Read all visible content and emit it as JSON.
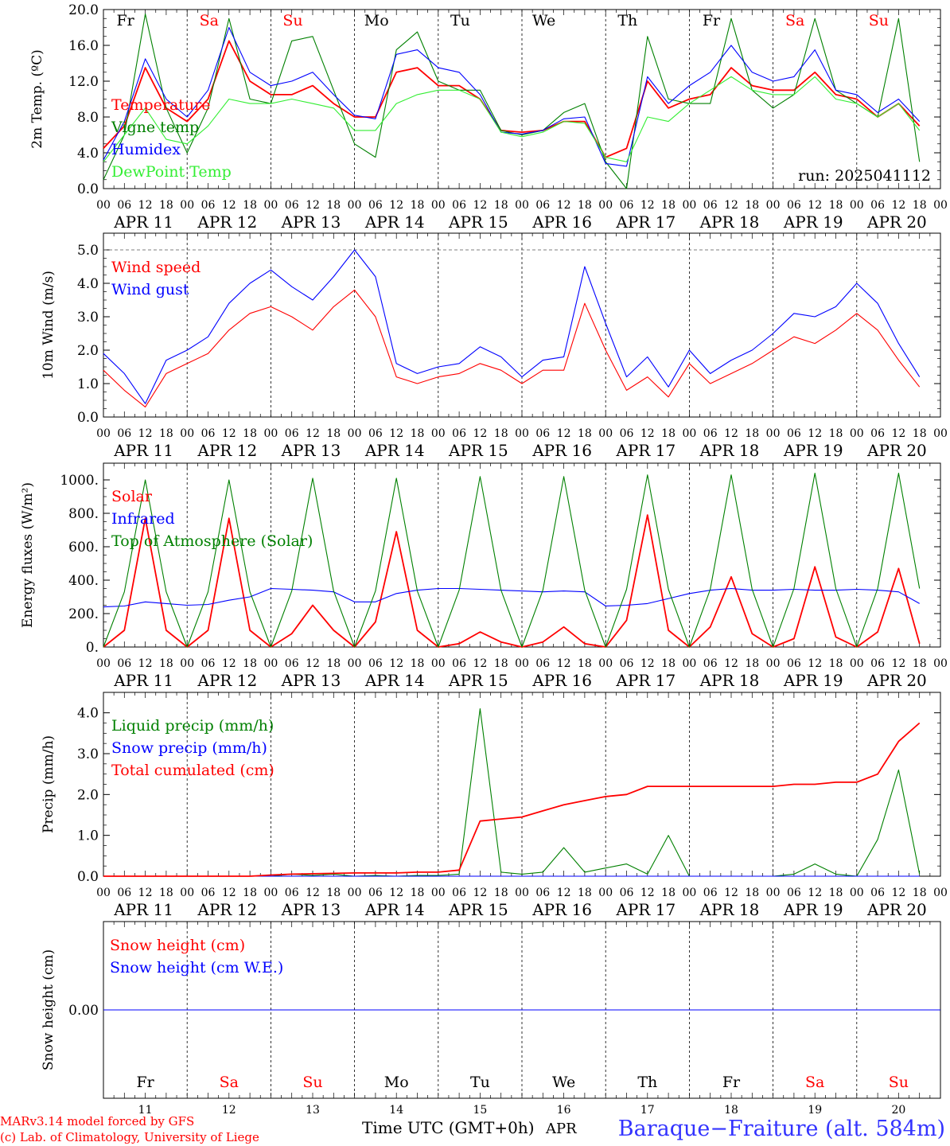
{
  "meta": {
    "run_label": "run: 2025041112",
    "model_line": "MARv3.14 model forced by GFS",
    "lab_line": "(c) Lab. of Climatology, University of Liege",
    "axis_caption": "Time UTC (GMT+0h)",
    "month": "APR",
    "station": "Baraque−Fraiture (alt. 584m)"
  },
  "colors": {
    "red": "#ff0000",
    "green": "#008000",
    "blue": "#0000ff",
    "lightgreen": "#33ee33",
    "black": "#000000"
  },
  "days": {
    "dates": [
      "APR 11",
      "APR 12",
      "APR 13",
      "APR 14",
      "APR 15",
      "APR 16",
      "APR 17",
      "APR 18",
      "APR 19",
      "APR 20"
    ],
    "day_numbers": [
      "11",
      "12",
      "13",
      "14",
      "15",
      "16",
      "17",
      "18",
      "19",
      "20"
    ],
    "weekdays": [
      "Fr",
      "Sa",
      "Su",
      "Mo",
      "Tu",
      "We",
      "Th",
      "Fr",
      "Sa",
      "Su"
    ],
    "weekend_flags": [
      false,
      true,
      true,
      false,
      false,
      false,
      false,
      false,
      true,
      true
    ],
    "hour_labels": [
      "00",
      "06",
      "12",
      "18"
    ],
    "end_label": "00"
  },
  "chart_data": [
    {
      "type": "line",
      "ylabel": "2m Temp. (ºC)",
      "ylim": [
        0,
        20
      ],
      "yticks": [
        "0.0",
        "4.0",
        "8.0",
        "12.0",
        "16.0",
        "20.0"
      ],
      "x_unit": "hours since APR 11 00 UTC",
      "x": [
        0,
        6,
        12,
        18,
        24,
        30,
        36,
        42,
        48,
        54,
        60,
        66,
        72,
        78,
        84,
        90,
        96,
        102,
        108,
        114,
        120,
        126,
        132,
        138,
        144,
        150,
        156,
        162,
        168,
        174,
        180,
        186,
        192,
        198,
        204,
        210,
        216,
        222,
        228,
        234
      ],
      "series": [
        {
          "name": "Temperature",
          "color": "red",
          "values": [
            4.5,
            7,
            13.5,
            9,
            7.5,
            10,
            16.5,
            12,
            10.5,
            10.5,
            11.5,
            9.5,
            8,
            8,
            13,
            13.5,
            11.5,
            11.5,
            10,
            6.5,
            6.3,
            6.5,
            7.5,
            7.5,
            3.5,
            4.5,
            12,
            9,
            10,
            10.5,
            13.5,
            11.5,
            11,
            11,
            13,
            10.5,
            10,
            8,
            9.5,
            7
          ]
        },
        {
          "name": "Vigne temp",
          "color": "green",
          "values": [
            1,
            6,
            19.5,
            9,
            4,
            9,
            19,
            10,
            9.5,
            16.5,
            17,
            11,
            5,
            3.5,
            15.5,
            17.5,
            12,
            11,
            11,
            6.5,
            6,
            6.5,
            8.5,
            9.5,
            3,
            0,
            17,
            10,
            9.5,
            9.5,
            19,
            11,
            9,
            10.5,
            19,
            11,
            9.5,
            8,
            19,
            3
          ]
        },
        {
          "name": "Humidex",
          "color": "blue",
          "values": [
            3.2,
            7.5,
            14.5,
            10,
            8,
            11,
            18,
            13,
            11.5,
            12,
            13,
            10.5,
            8.2,
            7.8,
            15,
            15.5,
            13.5,
            13,
            10.5,
            6.3,
            6.1,
            6.5,
            7.8,
            8,
            2.8,
            2.5,
            12.5,
            9.5,
            11.5,
            13,
            16,
            13,
            12,
            12.5,
            15.5,
            11,
            10.5,
            8.5,
            10,
            7.5
          ]
        },
        {
          "name": "DewPoint Temp",
          "color": "lightgreen",
          "values": [
            3,
            6,
            9,
            5.5,
            5,
            7,
            10,
            9.5,
            9.5,
            10,
            9.5,
            9,
            6.5,
            6.5,
            9.5,
            10.5,
            11,
            11,
            10,
            6.3,
            5.8,
            6.3,
            7.5,
            7.3,
            3.5,
            3,
            8,
            7.5,
            9.5,
            11,
            12.5,
            11,
            10.5,
            10.5,
            12.5,
            10,
            9.5,
            8,
            9.5,
            6.5
          ]
        }
      ]
    },
    {
      "type": "line",
      "ylabel": "10m Wind (m/s)",
      "ylim": [
        0,
        5.5
      ],
      "yticks": [
        "0.0",
        "1.0",
        "2.0",
        "3.0",
        "4.0",
        "5.0"
      ],
      "dashed_ref": 5.0,
      "x_unit": "hours since APR 11 00 UTC",
      "x": [
        0,
        6,
        12,
        18,
        24,
        30,
        36,
        42,
        48,
        54,
        60,
        66,
        72,
        78,
        84,
        90,
        96,
        102,
        108,
        114,
        120,
        126,
        132,
        138,
        144,
        150,
        156,
        162,
        168,
        174,
        180,
        186,
        192,
        198,
        204,
        210,
        216,
        222,
        228,
        234
      ],
      "series": [
        {
          "name": "Wind speed",
          "color": "red",
          "values": [
            1.4,
            0.8,
            0.3,
            1.3,
            1.6,
            1.9,
            2.6,
            3.1,
            3.3,
            3.0,
            2.6,
            3.3,
            3.8,
            3.0,
            1.2,
            1.0,
            1.2,
            1.3,
            1.6,
            1.4,
            1.0,
            1.4,
            1.4,
            3.4,
            2.0,
            0.8,
            1.2,
            0.6,
            1.6,
            1.0,
            1.3,
            1.6,
            2.0,
            2.4,
            2.2,
            2.6,
            3.1,
            2.6,
            1.7,
            0.9
          ]
        },
        {
          "name": "Wind gust",
          "color": "blue",
          "values": [
            1.9,
            1.3,
            0.4,
            1.7,
            2.0,
            2.4,
            3.4,
            4.0,
            4.4,
            3.9,
            3.5,
            4.2,
            5.0,
            4.2,
            1.6,
            1.3,
            1.5,
            1.6,
            2.1,
            1.8,
            1.2,
            1.7,
            1.8,
            4.5,
            2.8,
            1.2,
            1.8,
            0.9,
            2.0,
            1.3,
            1.7,
            2.0,
            2.5,
            3.1,
            3.0,
            3.3,
            4.0,
            3.4,
            2.2,
            1.2
          ]
        }
      ]
    },
    {
      "type": "line",
      "ylabel": "Energy fluxes (W/m²)",
      "ylim": [
        0,
        1100
      ],
      "yticks": [
        "0.",
        "200.",
        "400.",
        "600.",
        "800.",
        "1000."
      ],
      "x_unit": "hours since APR 11 00 UTC",
      "x": [
        0,
        6,
        12,
        18,
        24,
        30,
        36,
        42,
        48,
        54,
        60,
        66,
        72,
        78,
        84,
        90,
        96,
        102,
        108,
        114,
        120,
        126,
        132,
        138,
        144,
        150,
        156,
        162,
        168,
        174,
        180,
        186,
        192,
        198,
        204,
        210,
        216,
        222,
        228,
        234
      ],
      "series": [
        {
          "name": "Solar",
          "color": "red",
          "values": [
            0,
            100,
            770,
            100,
            0,
            100,
            770,
            100,
            0,
            80,
            250,
            100,
            0,
            150,
            690,
            100,
            0,
            20,
            90,
            30,
            0,
            30,
            120,
            20,
            0,
            160,
            790,
            100,
            0,
            120,
            420,
            80,
            0,
            50,
            480,
            60,
            0,
            90,
            470,
            20
          ]
        },
        {
          "name": "Infrared",
          "color": "blue",
          "values": [
            240,
            245,
            270,
            260,
            250,
            255,
            280,
            300,
            350,
            345,
            340,
            330,
            270,
            270,
            320,
            340,
            350,
            350,
            345,
            340,
            335,
            330,
            335,
            330,
            245,
            250,
            260,
            290,
            320,
            340,
            350,
            340,
            340,
            345,
            340,
            340,
            345,
            340,
            330,
            260
          ]
        },
        {
          "name": "Top of Atmosphere (Solar)",
          "color": "green",
          "values": [
            0,
            330,
            1000,
            330,
            0,
            330,
            1000,
            330,
            0,
            335,
            1010,
            335,
            0,
            335,
            1010,
            335,
            0,
            340,
            1020,
            340,
            0,
            340,
            1020,
            340,
            0,
            345,
            1030,
            345,
            0,
            345,
            1030,
            345,
            0,
            350,
            1040,
            350,
            0,
            350,
            1040,
            350
          ]
        }
      ]
    },
    {
      "type": "line",
      "ylabel": "Precip (mm/h)",
      "ylim": [
        0,
        4.5
      ],
      "yticks": [
        "0.0",
        "1.0",
        "2.0",
        "3.0",
        "4.0"
      ],
      "x_unit": "hours since APR 11 00 UTC",
      "x": [
        0,
        6,
        12,
        18,
        24,
        30,
        36,
        42,
        48,
        54,
        60,
        66,
        72,
        78,
        84,
        90,
        96,
        102,
        108,
        114,
        120,
        126,
        132,
        138,
        144,
        150,
        156,
        162,
        168,
        174,
        180,
        186,
        192,
        198,
        204,
        210,
        216,
        222,
        228,
        234
      ],
      "series": [
        {
          "name": "Liquid precip (mm/h)",
          "color": "green",
          "values": [
            0,
            0,
            0,
            0,
            0,
            0,
            0,
            0,
            0,
            0.05,
            0.02,
            0.05,
            0,
            0.02,
            0,
            0.02,
            0.02,
            0.05,
            4.1,
            0.1,
            0.05,
            0.1,
            0.7,
            0.1,
            0.2,
            0.3,
            0.05,
            1.0,
            0,
            0,
            0,
            0,
            0,
            0.05,
            0.3,
            0.05,
            0,
            0.9,
            2.6,
            0.05
          ]
        },
        {
          "name": "Snow precip (mm/h)",
          "color": "blue",
          "values": [
            0,
            0,
            0,
            0,
            0,
            0,
            0,
            0,
            0,
            0,
            0,
            0,
            0,
            0,
            0,
            0,
            0,
            0,
            0,
            0,
            0,
            0,
            0,
            0,
            0,
            0,
            0,
            0,
            0,
            0,
            0,
            0,
            0,
            0,
            0,
            0,
            0,
            0,
            0,
            0
          ]
        },
        {
          "name": "Total cumulated (cm)",
          "color": "red",
          "values": [
            0,
            0,
            0,
            0,
            0,
            0,
            0,
            0,
            0.03,
            0.05,
            0.06,
            0.07,
            0.08,
            0.08,
            0.08,
            0.1,
            0.1,
            0.15,
            1.35,
            1.4,
            1.45,
            1.6,
            1.75,
            1.85,
            1.95,
            2.0,
            2.2,
            2.2,
            2.2,
            2.2,
            2.2,
            2.2,
            2.2,
            2.25,
            2.25,
            2.3,
            2.3,
            2.5,
            3.3,
            3.75
          ]
        }
      ]
    },
    {
      "type": "line",
      "ylabel": "Snow height (cm)",
      "ylim": [
        -1,
        1
      ],
      "yticks": [
        "0.00"
      ],
      "x_unit": "hours since APR 11 00 UTC",
      "x": [
        0,
        240
      ],
      "series": [
        {
          "name": "Snow height (cm)",
          "color": "red",
          "values": [
            0,
            0
          ]
        },
        {
          "name": "Snow height (cm W.E.)",
          "color": "blue",
          "values": [
            0,
            0
          ]
        }
      ]
    }
  ]
}
